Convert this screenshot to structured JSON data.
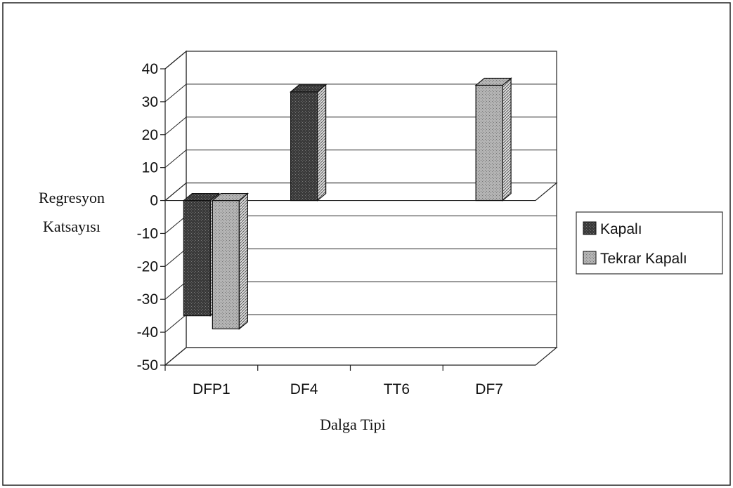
{
  "chart_data": {
    "type": "bar",
    "title": "",
    "xlabel": "Dalga Tipi",
    "ylabel_lines": [
      "Regresyon",
      "Katsayısı"
    ],
    "categories": [
      "DFP1",
      "DF4",
      "TT6",
      "DF7"
    ],
    "series": [
      {
        "name": "Kapalı",
        "values": [
          -35,
          33,
          null,
          null
        ],
        "color": "#3a3a3a"
      },
      {
        "name": "Tekrar Kapalı",
        "values": [
          -39,
          null,
          null,
          35
        ],
        "color": "#a9a9a9"
      }
    ],
    "y_ticks": [
      40,
      30,
      20,
      10,
      0,
      -10,
      -20,
      -30,
      -40,
      -50
    ],
    "ylim": [
      -50,
      40
    ],
    "grid": true,
    "style": "3d-column",
    "legend_position": "right"
  }
}
